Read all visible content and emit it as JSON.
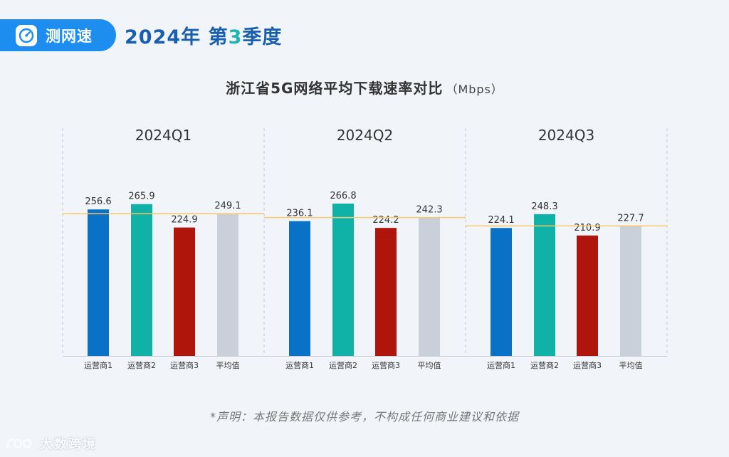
{
  "header": {
    "brand_name": "测网速",
    "brand_icon": "speedometer-icon",
    "year_label": "2024年",
    "quarter_prefix": "第",
    "quarter_number": "3",
    "quarter_suffix": "季度"
  },
  "chart_data": {
    "type": "bar",
    "title": "浙江省5G网络平均下载速率对比",
    "unit": "（Mbps）",
    "categories": [
      "运营商1",
      "运营商2",
      "运营商3",
      "平均值"
    ],
    "colors": [
      "#0a72c6",
      "#10b2a8",
      "#b0150c",
      "#c9d0da"
    ],
    "average_line_color": "#f5c86a",
    "groups": [
      {
        "name": "2024Q1",
        "values": [
          256.6,
          265.9,
          224.9,
          249.1
        ],
        "labels": [
          "256.6",
          "265.9",
          "224.9",
          "249.1"
        ]
      },
      {
        "name": "2024Q2",
        "values": [
          236.1,
          266.8,
          224.2,
          242.3
        ],
        "labels": [
          "236.1",
          "266.8",
          "224.2",
          "242.3"
        ]
      },
      {
        "name": "2024Q3",
        "values": [
          224.1,
          248.3,
          210.9,
          227.7
        ],
        "labels": [
          "224.1",
          "248.3",
          "210.9",
          "227.7"
        ]
      }
    ],
    "ylim": [
      0,
      266.8
    ]
  },
  "footer": {
    "disclaimer": "*声明：本报告数据仅供参考，不构成任何商业建议和依据",
    "watermark_text": "大数跨境",
    "watermark_icon": "logo-icon"
  }
}
